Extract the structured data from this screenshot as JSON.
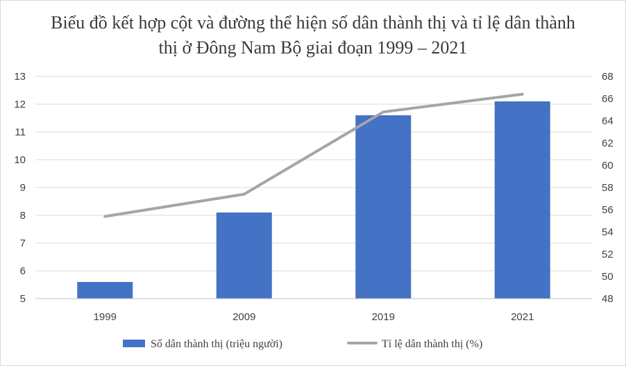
{
  "chart_data": {
    "type": "bar+line",
    "title": "Biểu đồ kết hợp cột và đường thể hiện số dân thành thị và tỉ lệ dân thành thị ở Đông Nam Bộ giai đoạn 1999 – 2021",
    "categories": [
      "1999",
      "2009",
      "2019",
      "2021"
    ],
    "series": [
      {
        "name": "Số dân thành thị (triệu người)",
        "type": "bar",
        "axis": "left",
        "color": "#4472c4",
        "values": [
          5.6,
          8.1,
          11.6,
          12.1
        ]
      },
      {
        "name": "Tỉ lệ dân thành thị (%)",
        "type": "line",
        "axis": "right",
        "color": "#a5a5a5",
        "values": [
          55.4,
          57.4,
          64.8,
          66.4
        ]
      }
    ],
    "y_left": {
      "min": 5,
      "max": 13,
      "ticks": [
        "5",
        "6",
        "7",
        "8",
        "9",
        "10",
        "11",
        "12",
        "13"
      ]
    },
    "y_right": {
      "min": 48,
      "max": 68,
      "ticks": [
        "48",
        "50",
        "52",
        "54",
        "56",
        "58",
        "60",
        "62",
        "64",
        "66",
        "68"
      ]
    },
    "grid": true,
    "legend": "bottom"
  }
}
